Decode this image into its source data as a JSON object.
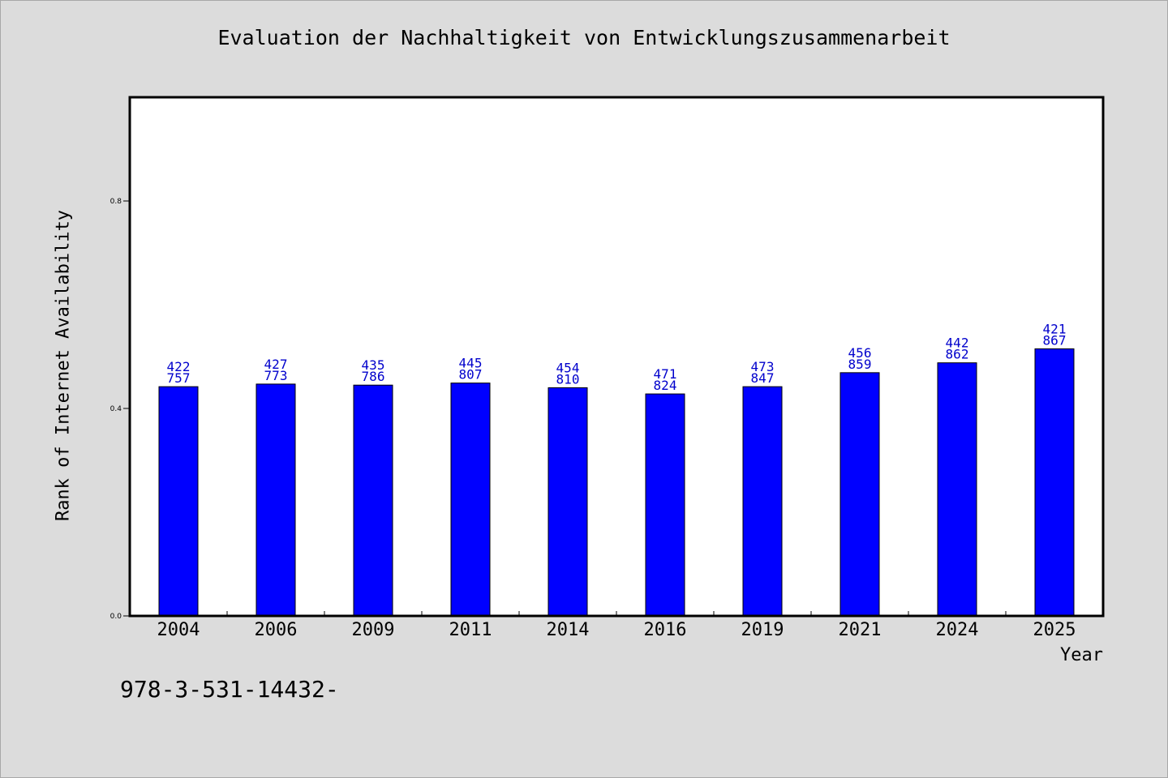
{
  "chart_data": {
    "type": "bar",
    "title": "Evaluation der Nachhaltigkeit von Entwicklungszusammenarbeit",
    "xlabel": "Year",
    "ylabel": "Rank of Internet Availability",
    "categories": [
      "2004",
      "2006",
      "2009",
      "2011",
      "2014",
      "2016",
      "2019",
      "2021",
      "2024",
      "2025"
    ],
    "values": [
      0.442,
      0.447,
      0.445,
      0.449,
      0.44,
      0.428,
      0.442,
      0.469,
      0.488,
      0.515
    ],
    "data_labels": [
      [
        "422",
        "757"
      ],
      [
        "427",
        "773"
      ],
      [
        "435",
        "786"
      ],
      [
        "445",
        "807"
      ],
      [
        "454",
        "810"
      ],
      [
        "471",
        "824"
      ],
      [
        "473",
        "847"
      ],
      [
        "456",
        "859"
      ],
      [
        "442",
        "862"
      ],
      [
        "421",
        "867"
      ]
    ],
    "yticks": [
      0.0,
      0.4,
      0.8
    ],
    "ytick_labels": [
      "0.0",
      "0.4",
      "0.8"
    ],
    "ylim": [
      0,
      1.0
    ],
    "grid": false,
    "bar_color": "#0000ff",
    "label_color": "#0000cc"
  },
  "footnote": "978-3-531-14432-"
}
